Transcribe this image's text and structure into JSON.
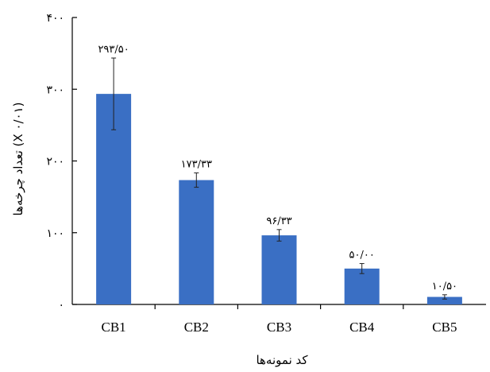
{
  "chart_data": {
    "type": "bar",
    "title": "",
    "xlabel": "کد نمونه‌ها",
    "ylabel": "تعداد چرخه‌ها (X ۰/۰۱)",
    "categories": [
      "CB1",
      "CB2",
      "CB3",
      "CB4",
      "CB5"
    ],
    "values": [
      293.5,
      173.33,
      96.33,
      50.0,
      10.5
    ],
    "value_labels": [
      "۲۹۳/۵۰",
      "۱۷۳/۳۳",
      "۹۶/۳۳",
      "۵۰/۰۰",
      "۱۰/۵۰"
    ],
    "error_bars": [
      50,
      10,
      8,
      7,
      3
    ],
    "ylim": [
      0,
      400
    ],
    "yticks": [
      0,
      100,
      200,
      300,
      400
    ],
    "ytick_labels": [
      "۰",
      "۱۰۰",
      "۲۰۰",
      "۳۰۰",
      "۴۰۰"
    ],
    "bar_color": "#3a6fc4",
    "grid": false,
    "legend": "none"
  }
}
